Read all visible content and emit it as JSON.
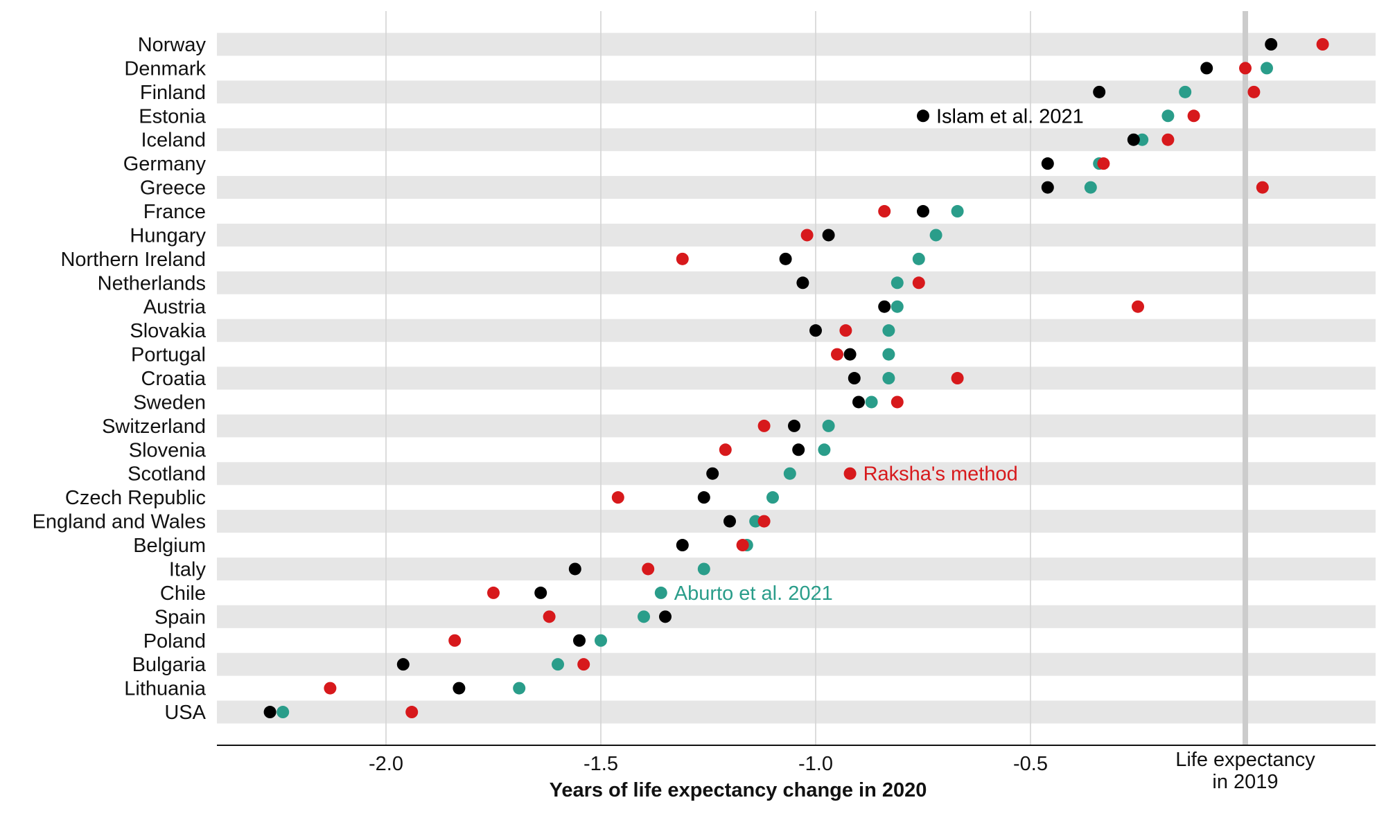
{
  "chart_data": {
    "type": "scatter",
    "xlabel": "Years of life expectancy change in 2020",
    "xlim": [
      -2.4,
      0.25
    ],
    "x_ticks": [
      {
        "value": -2.0,
        "label": "-2.0"
      },
      {
        "value": -1.5,
        "label": "-1.5"
      },
      {
        "value": -1.0,
        "label": "-1.0"
      },
      {
        "value": -0.5,
        "label": "-0.5"
      }
    ],
    "reference_line": {
      "value": 0,
      "label_line1": "Life expectancy",
      "label_line2": "in 2019",
      "color": "#cccccc"
    },
    "grid": "vertical lines at ticks, alternating gray row bands",
    "categories": [
      "Norway",
      "Denmark",
      "Finland",
      "Estonia",
      "Iceland",
      "Germany",
      "Greece",
      "France",
      "Hungary",
      "Northern Ireland",
      "Netherlands",
      "Austria",
      "Slovakia",
      "Portugal",
      "Croatia",
      "Sweden",
      "Switzerland",
      "Slovenia",
      "Scotland",
      "Czech Republic",
      "England and Wales",
      "Belgium",
      "Italy",
      "Chile",
      "Spain",
      "Poland",
      "Bulgaria",
      "Lithuania",
      "USA"
    ],
    "series": [
      {
        "name": "Islam et al. 2021",
        "color": "#000000",
        "values": [
          0.06,
          -0.09,
          -0.34,
          -0.75,
          -0.26,
          -0.46,
          -0.46,
          -0.75,
          -0.97,
          -1.07,
          -1.03,
          -0.84,
          -1.0,
          -0.92,
          -0.91,
          -0.9,
          -1.05,
          -1.04,
          -1.24,
          -1.26,
          -1.2,
          -1.31,
          -1.56,
          -1.64,
          -1.35,
          -1.55,
          -1.96,
          -1.83,
          -2.27
        ]
      },
      {
        "name": "Aburto et al. 2021",
        "color": "#2a9d8a",
        "values": [
          null,
          0.05,
          -0.14,
          -0.18,
          -0.24,
          -0.34,
          -0.36,
          -0.67,
          -0.72,
          -0.76,
          -0.81,
          -0.81,
          -0.83,
          -0.83,
          -0.83,
          -0.87,
          -0.97,
          -0.98,
          -1.06,
          -1.1,
          -1.14,
          -1.16,
          -1.26,
          -1.36,
          -1.4,
          -1.5,
          -1.6,
          -1.69,
          -2.24
        ]
      },
      {
        "name": "Raksha's method",
        "color": "#d7191c",
        "values": [
          0.18,
          0.0,
          0.02,
          -0.12,
          -0.18,
          -0.33,
          0.04,
          -0.84,
          -1.02,
          -1.31,
          -0.76,
          -0.25,
          -0.93,
          -0.95,
          -0.67,
          -0.81,
          -1.12,
          -1.21,
          -0.92,
          -1.46,
          -1.12,
          -1.17,
          -1.39,
          -1.75,
          -1.62,
          -1.84,
          -1.54,
          -2.13,
          -1.94
        ]
      }
    ],
    "annotations": [
      {
        "text": "Islam et al. 2021",
        "series": 0,
        "category": "Estonia"
      },
      {
        "text": "Raksha's method",
        "series": 2,
        "category": "Scotland"
      },
      {
        "text": "Aburto et al. 2021",
        "series": 1,
        "category": "Chile"
      }
    ]
  }
}
